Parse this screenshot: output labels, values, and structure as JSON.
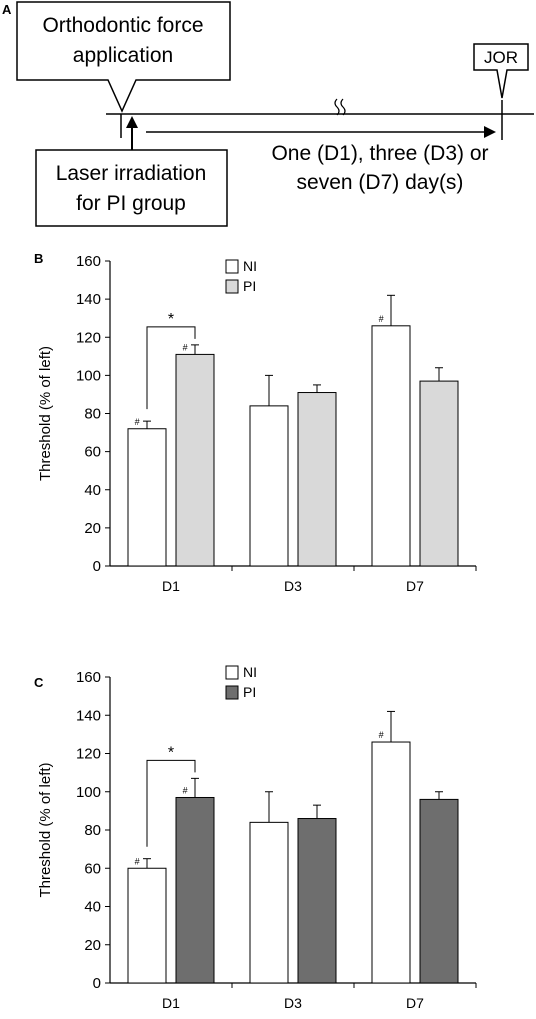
{
  "diagram": {
    "panel_label": "A",
    "force_label_line1": "Orthodontic force",
    "force_label_line2": "application",
    "jor_label": "JOR",
    "laser_label_line1": "Laser irradiation",
    "laser_label_line2": "for PI group",
    "days_label_line1": "One (D1), three (D3) or",
    "days_label_line2": "seven (D7) day(s)"
  },
  "chart_data": [
    {
      "panel_label": "B",
      "type": "bar",
      "categories": [
        "D1",
        "D3",
        "D7"
      ],
      "ylabel": "Threshold  (% of left)",
      "ylim": [
        0,
        160
      ],
      "yticks": [
        0,
        20,
        40,
        60,
        80,
        100,
        120,
        140,
        160
      ],
      "legend": "top-left",
      "series": [
        {
          "name": "NI",
          "color": "#ffffff",
          "values": [
            72,
            84,
            126
          ],
          "errors": [
            4,
            16,
            16
          ],
          "marks": [
            "#",
            "",
            "#"
          ]
        },
        {
          "name": "PI",
          "color": "#d9d9d9",
          "values": [
            111,
            91,
            97
          ],
          "errors": [
            5,
            4,
            7
          ],
          "marks": [
            "#",
            "",
            ""
          ]
        }
      ],
      "significance": {
        "category": "D1",
        "label": "*"
      }
    },
    {
      "panel_label": "C",
      "type": "bar",
      "categories": [
        "D1",
        "D3",
        "D7"
      ],
      "ylabel": "Threshold  (% of left)",
      "ylim": [
        0,
        160
      ],
      "yticks": [
        0,
        20,
        40,
        60,
        80,
        100,
        120,
        140,
        160
      ],
      "legend": "top-left",
      "series": [
        {
          "name": "NI",
          "color": "#ffffff",
          "values": [
            60,
            84,
            126
          ],
          "errors": [
            5,
            16,
            16
          ],
          "marks": [
            "#",
            "",
            "#"
          ]
        },
        {
          "name": "PI",
          "color": "#6e6e6e",
          "values": [
            97,
            86,
            96
          ],
          "errors": [
            10,
            7,
            4
          ],
          "marks": [
            "#",
            "",
            ""
          ]
        }
      ],
      "significance": {
        "category": "D1",
        "label": "*"
      }
    }
  ]
}
